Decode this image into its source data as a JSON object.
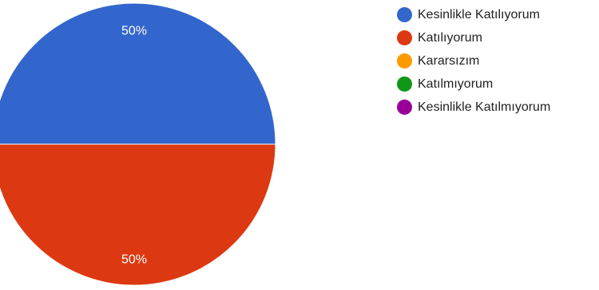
{
  "chart_data": {
    "type": "pie",
    "categories": [
      "Kesinlikle Katılıyorum",
      "Katılıyorum",
      "Kararsızım",
      "Katılmıyorum",
      "Kesinlikle Katılmıyorum"
    ],
    "values": [
      50,
      50,
      0,
      0,
      0
    ],
    "data_labels": [
      "50%",
      "50%",
      "",
      "",
      ""
    ],
    "colors": [
      "#3366cc",
      "#dc3912",
      "#ff9900",
      "#109618",
      "#990099"
    ],
    "legend": "right"
  }
}
